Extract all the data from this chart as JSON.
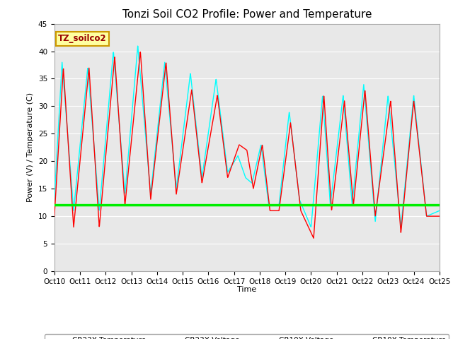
{
  "title": "Tonzi Soil CO2 Profile: Power and Temperature",
  "ylabel": "Power (V) / Temperature (C)",
  "xlabel": "Time",
  "xlim": [
    0,
    15
  ],
  "ylim": [
    0,
    45
  ],
  "yticks": [
    0,
    5,
    10,
    15,
    20,
    25,
    30,
    35,
    40,
    45
  ],
  "xtick_labels": [
    "Oct 10",
    "Oct 11",
    "Oct 12",
    "Oct 13",
    "Oct 14",
    "Oct 15",
    "Oct 16",
    "Oct 17",
    "Oct 18",
    "Oct 19",
    "Oct 20",
    "Oct 21",
    "Oct 22",
    "Oct 23",
    "Oct 24",
    "Oct 25"
  ],
  "xtick_positions": [
    0,
    1,
    2,
    3,
    4,
    5,
    6,
    7,
    8,
    9,
    10,
    11,
    12,
    13,
    14,
    15
  ],
  "cr23x_temp_color": "#FF0000",
  "cr23x_volt_color": "#0000CC",
  "cr10x_volt_color": "#00EE00",
  "cr10x_temp_color": "#00FFFF",
  "voltage_level": 12.0,
  "plot_bg_color": "#E8E8E8",
  "annotation_text": "TZ_soilco2",
  "title_fontsize": 11,
  "axis_label_fontsize": 8,
  "tick_fontsize": 7.5,
  "cr23x_pts": [
    [
      0.0,
      10
    ],
    [
      0.35,
      37
    ],
    [
      0.75,
      8
    ],
    [
      1.35,
      37
    ],
    [
      1.75,
      8
    ],
    [
      2.35,
      39
    ],
    [
      2.75,
      12
    ],
    [
      3.35,
      40
    ],
    [
      3.75,
      13
    ],
    [
      4.35,
      38
    ],
    [
      4.75,
      14
    ],
    [
      5.35,
      33
    ],
    [
      5.75,
      16
    ],
    [
      6.35,
      32
    ],
    [
      6.75,
      17
    ],
    [
      7.2,
      23
    ],
    [
      7.5,
      22
    ],
    [
      7.75,
      15
    ],
    [
      8.1,
      23
    ],
    [
      8.4,
      11
    ],
    [
      8.75,
      11
    ],
    [
      9.2,
      27
    ],
    [
      9.6,
      11
    ],
    [
      10.1,
      6
    ],
    [
      10.5,
      32
    ],
    [
      10.8,
      11
    ],
    [
      11.3,
      31
    ],
    [
      11.65,
      12
    ],
    [
      12.1,
      33
    ],
    [
      12.5,
      10
    ],
    [
      13.1,
      31
    ],
    [
      13.5,
      7
    ],
    [
      14.0,
      31
    ],
    [
      14.5,
      10
    ],
    [
      15.0,
      10
    ]
  ],
  "cr10x_pts": [
    [
      0.0,
      13
    ],
    [
      0.3,
      38
    ],
    [
      0.75,
      11
    ],
    [
      1.3,
      37
    ],
    [
      1.75,
      11
    ],
    [
      2.3,
      40
    ],
    [
      2.75,
      14
    ],
    [
      3.25,
      41
    ],
    [
      3.75,
      14
    ],
    [
      4.3,
      38
    ],
    [
      4.75,
      15
    ],
    [
      5.3,
      36
    ],
    [
      5.75,
      17
    ],
    [
      6.3,
      35
    ],
    [
      6.75,
      18
    ],
    [
      7.15,
      21
    ],
    [
      7.45,
      17
    ],
    [
      7.7,
      16
    ],
    [
      8.05,
      23
    ],
    [
      8.35,
      12
    ],
    [
      8.75,
      12
    ],
    [
      9.15,
      29
    ],
    [
      9.55,
      13
    ],
    [
      10.0,
      8
    ],
    [
      10.45,
      32
    ],
    [
      10.75,
      12
    ],
    [
      11.25,
      32
    ],
    [
      11.6,
      12
    ],
    [
      12.05,
      34
    ],
    [
      12.5,
      9
    ],
    [
      13.0,
      32
    ],
    [
      13.5,
      8
    ],
    [
      14.0,
      32
    ],
    [
      14.5,
      10
    ],
    [
      15.0,
      11
    ]
  ]
}
